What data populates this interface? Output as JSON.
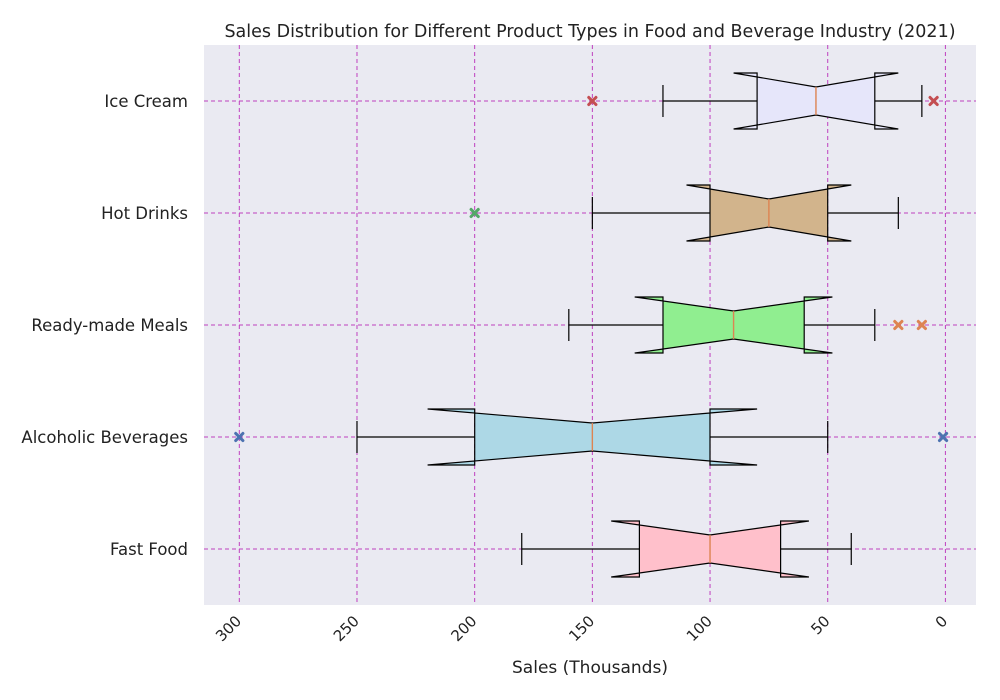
{
  "chart_data": {
    "type": "boxplot",
    "orientation": "horizontal",
    "notched": true,
    "title": "Sales Distribution for Different Product Types in Food and Beverage Industry (2021)",
    "xlabel": "Sales (Thousands)",
    "ylabel": "",
    "x_axis_inverted": true,
    "xlim": [
      315,
      -13
    ],
    "xticks": [
      300,
      250,
      200,
      150,
      100,
      50,
      0
    ],
    "grid": true,
    "categories": [
      "Fast Food",
      "Alcoholic Beverages",
      "Ready-made Meals",
      "Hot Drinks",
      "Ice Cream"
    ],
    "boxes": [
      {
        "name": "Fast Food",
        "whisker_low": 40,
        "q1": 70,
        "median": 100,
        "q3": 130,
        "whisker_high": 180,
        "notch_low": 58,
        "notch_high": 142,
        "outliers": [],
        "color": "#ffc0cb",
        "outlier_color": "#4c72b0"
      },
      {
        "name": "Alcoholic Beverages",
        "whisker_low": 50,
        "q1": 100,
        "median": 150,
        "q3": 200,
        "whisker_high": 250,
        "notch_low": 80,
        "notch_high": 220,
        "outliers": [
          300,
          1
        ],
        "color": "#add8e6",
        "outlier_color": "#4c72b0"
      },
      {
        "name": "Ready-made Meals",
        "whisker_low": 30,
        "q1": 60,
        "median": 90,
        "q3": 120,
        "whisker_high": 160,
        "notch_low": 48,
        "notch_high": 132,
        "outliers": [
          20,
          10
        ],
        "color": "#90ee90",
        "outlier_color": "#dd8452"
      },
      {
        "name": "Hot Drinks",
        "whisker_low": 20,
        "q1": 50,
        "median": 75,
        "q3": 100,
        "whisker_high": 150,
        "notch_low": 40,
        "notch_high": 110,
        "outliers": [
          200
        ],
        "color": "#d2b48c",
        "outlier_color": "#55a868"
      },
      {
        "name": "Ice Cream",
        "whisker_low": 10,
        "q1": 30,
        "median": 55,
        "q3": 80,
        "whisker_high": 120,
        "notch_low": 20,
        "notch_high": 90,
        "outliers": [
          150,
          5
        ],
        "color": "#e6e6fa",
        "outlier_color": "#c44e52"
      }
    ],
    "colors": {
      "plot_background": "#eaeaf2",
      "grid": "#bf40bf",
      "median": "#dd8452",
      "box_edge": "#000000"
    }
  }
}
